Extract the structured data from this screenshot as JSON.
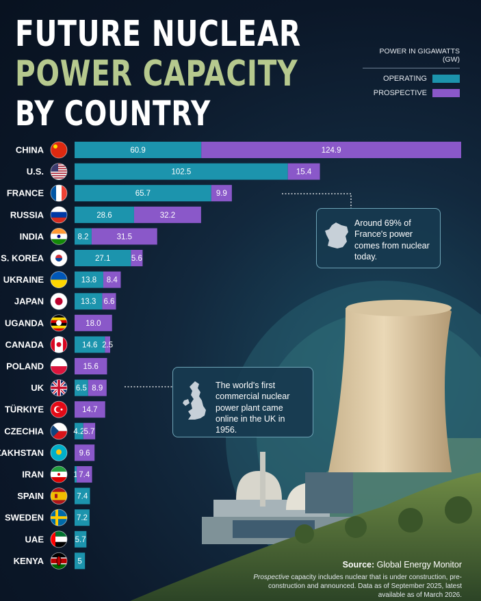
{
  "title": {
    "line1": "FUTURE NUCLEAR",
    "line2": "POWER CAPACITY",
    "line3": "BY COUNTRY"
  },
  "legend": {
    "title": "POWER IN GIGAWATTS (GW)",
    "items": [
      {
        "label": "OPERATING",
        "color": "#1c94ad"
      },
      {
        "label": "PROSPECTIVE",
        "color": "#8a58c9"
      }
    ]
  },
  "chart_data": {
    "type": "bar",
    "orientation": "horizontal",
    "stacked": true,
    "categories": [
      "CHINA",
      "U.S.",
      "FRANCE",
      "RUSSIA",
      "INDIA",
      "S. KOREA",
      "UKRAINE",
      "JAPAN",
      "UGANDA",
      "CANADA",
      "POLAND",
      "UK",
      "TÜRKIYE",
      "CZECHIA",
      "KAZAKHSTAN",
      "IRAN",
      "SPAIN",
      "SWEDEN",
      "UAE",
      "KENYA"
    ],
    "series": [
      {
        "name": "OPERATING",
        "color": "#1c94ad",
        "values": [
          60.9,
          102.5,
          65.7,
          28.6,
          8.2,
          27.1,
          13.8,
          13.3,
          null,
          14.6,
          null,
          6.5,
          null,
          4.2,
          null,
          1,
          7.4,
          7.2,
          5.7,
          5
        ],
        "labels": [
          "60.9",
          "102.5",
          "65.7",
          "28.6",
          "8.2",
          "27.1",
          "13.8",
          "13.3",
          "",
          "14.6",
          "",
          "6.5",
          "",
          "4.2",
          "",
          "1",
          "7.4",
          "7.2",
          "5.7",
          "5"
        ]
      },
      {
        "name": "PROSPECTIVE",
        "color": "#8a58c9",
        "values": [
          124.9,
          15.4,
          9.9,
          32.2,
          31.5,
          5.6,
          8.4,
          6.6,
          18.0,
          2.5,
          15.6,
          8.9,
          14.7,
          5.7,
          9.6,
          7.4,
          null,
          null,
          null,
          null
        ],
        "labels": [
          "124.9",
          "15.4",
          "9.9",
          "32.2",
          "31.5",
          "5.6",
          "8.4",
          "6.6",
          "18.0",
          "2.5",
          "15.6",
          "8.9",
          "14.7",
          "5.7",
          "9.6",
          "7.4",
          "",
          "",
          "",
          ""
        ]
      }
    ],
    "flags": [
      "china-flag",
      "us-flag",
      "france-flag",
      "russia-flag",
      "india-flag",
      "south-korea-flag",
      "ukraine-flag",
      "japan-flag",
      "uganda-flag",
      "canada-flag",
      "poland-flag",
      "uk-flag",
      "turkiye-flag",
      "czechia-flag",
      "kazakhstan-flag",
      "iran-flag",
      "spain-flag",
      "sweden-flag",
      "uae-flag",
      "kenya-flag"
    ],
    "xlim": [
      0,
      185.8
    ],
    "grid": false,
    "legend_position": "top-right"
  },
  "callouts": {
    "france": "Around 69% of France's power comes from nuclear today.",
    "uk": "The world's first commercial nuclear power plant came online in the UK in 1956."
  },
  "source": {
    "label": "Source:",
    "text": "Global Energy Monitor",
    "note_italic": "Prospective",
    "note_rest": " capacity includes nuclear that is under construction, pre-construction and announced. Data as of September 2025, latest available as of March 2026."
  }
}
